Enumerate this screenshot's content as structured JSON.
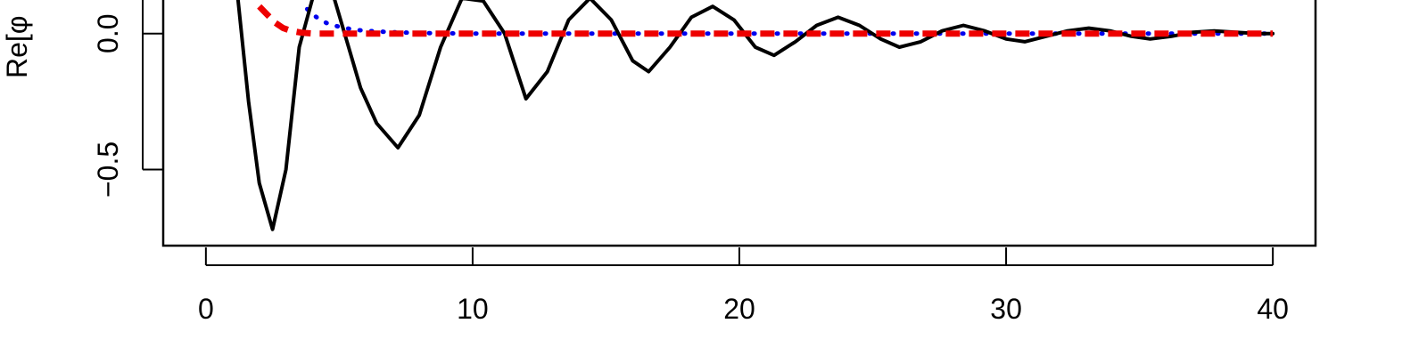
{
  "chart_data": {
    "type": "line",
    "title": "",
    "xlabel": "",
    "ylabel": "Re[φ",
    "xlim": [
      -1.6,
      41.6
    ],
    "ylim": [
      -0.78,
      0.13
    ],
    "x_ticks": [
      0,
      10,
      20,
      30,
      40
    ],
    "x_tick_labels": [
      "0",
      "10",
      "20",
      "30",
      "40"
    ],
    "y_ticks": [
      0.0,
      -0.5
    ],
    "y_tick_labels": [
      "0.0",
      "−0.5"
    ],
    "grid": false,
    "legend": "none",
    "series": [
      {
        "style": "solid",
        "color": "#000000",
        "x": [
          1.2,
          1.6,
          2.0,
          2.5,
          3.0,
          3.5,
          4.0,
          4.6,
          5.2,
          5.8,
          6.4,
          7.2,
          8.0,
          8.8,
          9.6,
          10.4,
          11.2,
          12.0,
          12.8,
          13.6,
          14.4,
          15.2,
          16.0,
          16.6,
          17.4,
          18.2,
          19.0,
          19.8,
          20.6,
          21.3,
          22.1,
          22.9,
          23.7,
          24.5,
          25.3,
          26.0,
          26.8,
          27.6,
          28.4,
          29.2,
          30.0,
          30.7,
          31.5,
          32.3,
          33.1,
          33.9,
          34.7,
          35.4,
          36.2,
          37.0,
          37.8,
          38.6,
          39.4,
          40.0
        ],
        "y": [
          0.13,
          -0.25,
          -0.55,
          -0.72,
          -0.5,
          -0.05,
          0.13,
          0.2,
          0.0,
          -0.2,
          -0.33,
          -0.42,
          -0.3,
          -0.05,
          0.13,
          0.12,
          0.0,
          -0.24,
          -0.14,
          0.05,
          0.13,
          0.05,
          -0.1,
          -0.14,
          -0.05,
          0.06,
          0.1,
          0.05,
          -0.05,
          -0.08,
          -0.03,
          0.03,
          0.06,
          0.03,
          -0.02,
          -0.05,
          -0.03,
          0.01,
          0.03,
          0.01,
          -0.02,
          -0.03,
          -0.01,
          0.01,
          0.02,
          0.01,
          -0.01,
          -0.02,
          -0.01,
          0.005,
          0.01,
          0.005,
          0.0,
          0.0
        ]
      },
      {
        "style": "dashed",
        "color": "#ee0000",
        "x": [
          2.0,
          2.2,
          2.4,
          2.6,
          2.9,
          3.2,
          3.6,
          4.0,
          5.0,
          10.0,
          20.0,
          30.0,
          40.0
        ],
        "y": [
          0.1,
          0.08,
          0.06,
          0.04,
          0.02,
          0.01,
          0.003,
          0.0,
          0.0,
          0.0,
          0.0,
          0.0,
          0.0
        ]
      },
      {
        "style": "dotted",
        "color": "#0000ee",
        "x": [
          3.8,
          4.0,
          4.3,
          4.6,
          5.0,
          5.5,
          6.0,
          7.0,
          8.0,
          10.0,
          15.0,
          20.0,
          30.0,
          40.0
        ],
        "y": [
          0.09,
          0.07,
          0.05,
          0.035,
          0.025,
          0.015,
          0.01,
          0.005,
          0.002,
          0.0,
          0.0,
          0.0,
          0.0,
          0.0
        ]
      }
    ]
  }
}
